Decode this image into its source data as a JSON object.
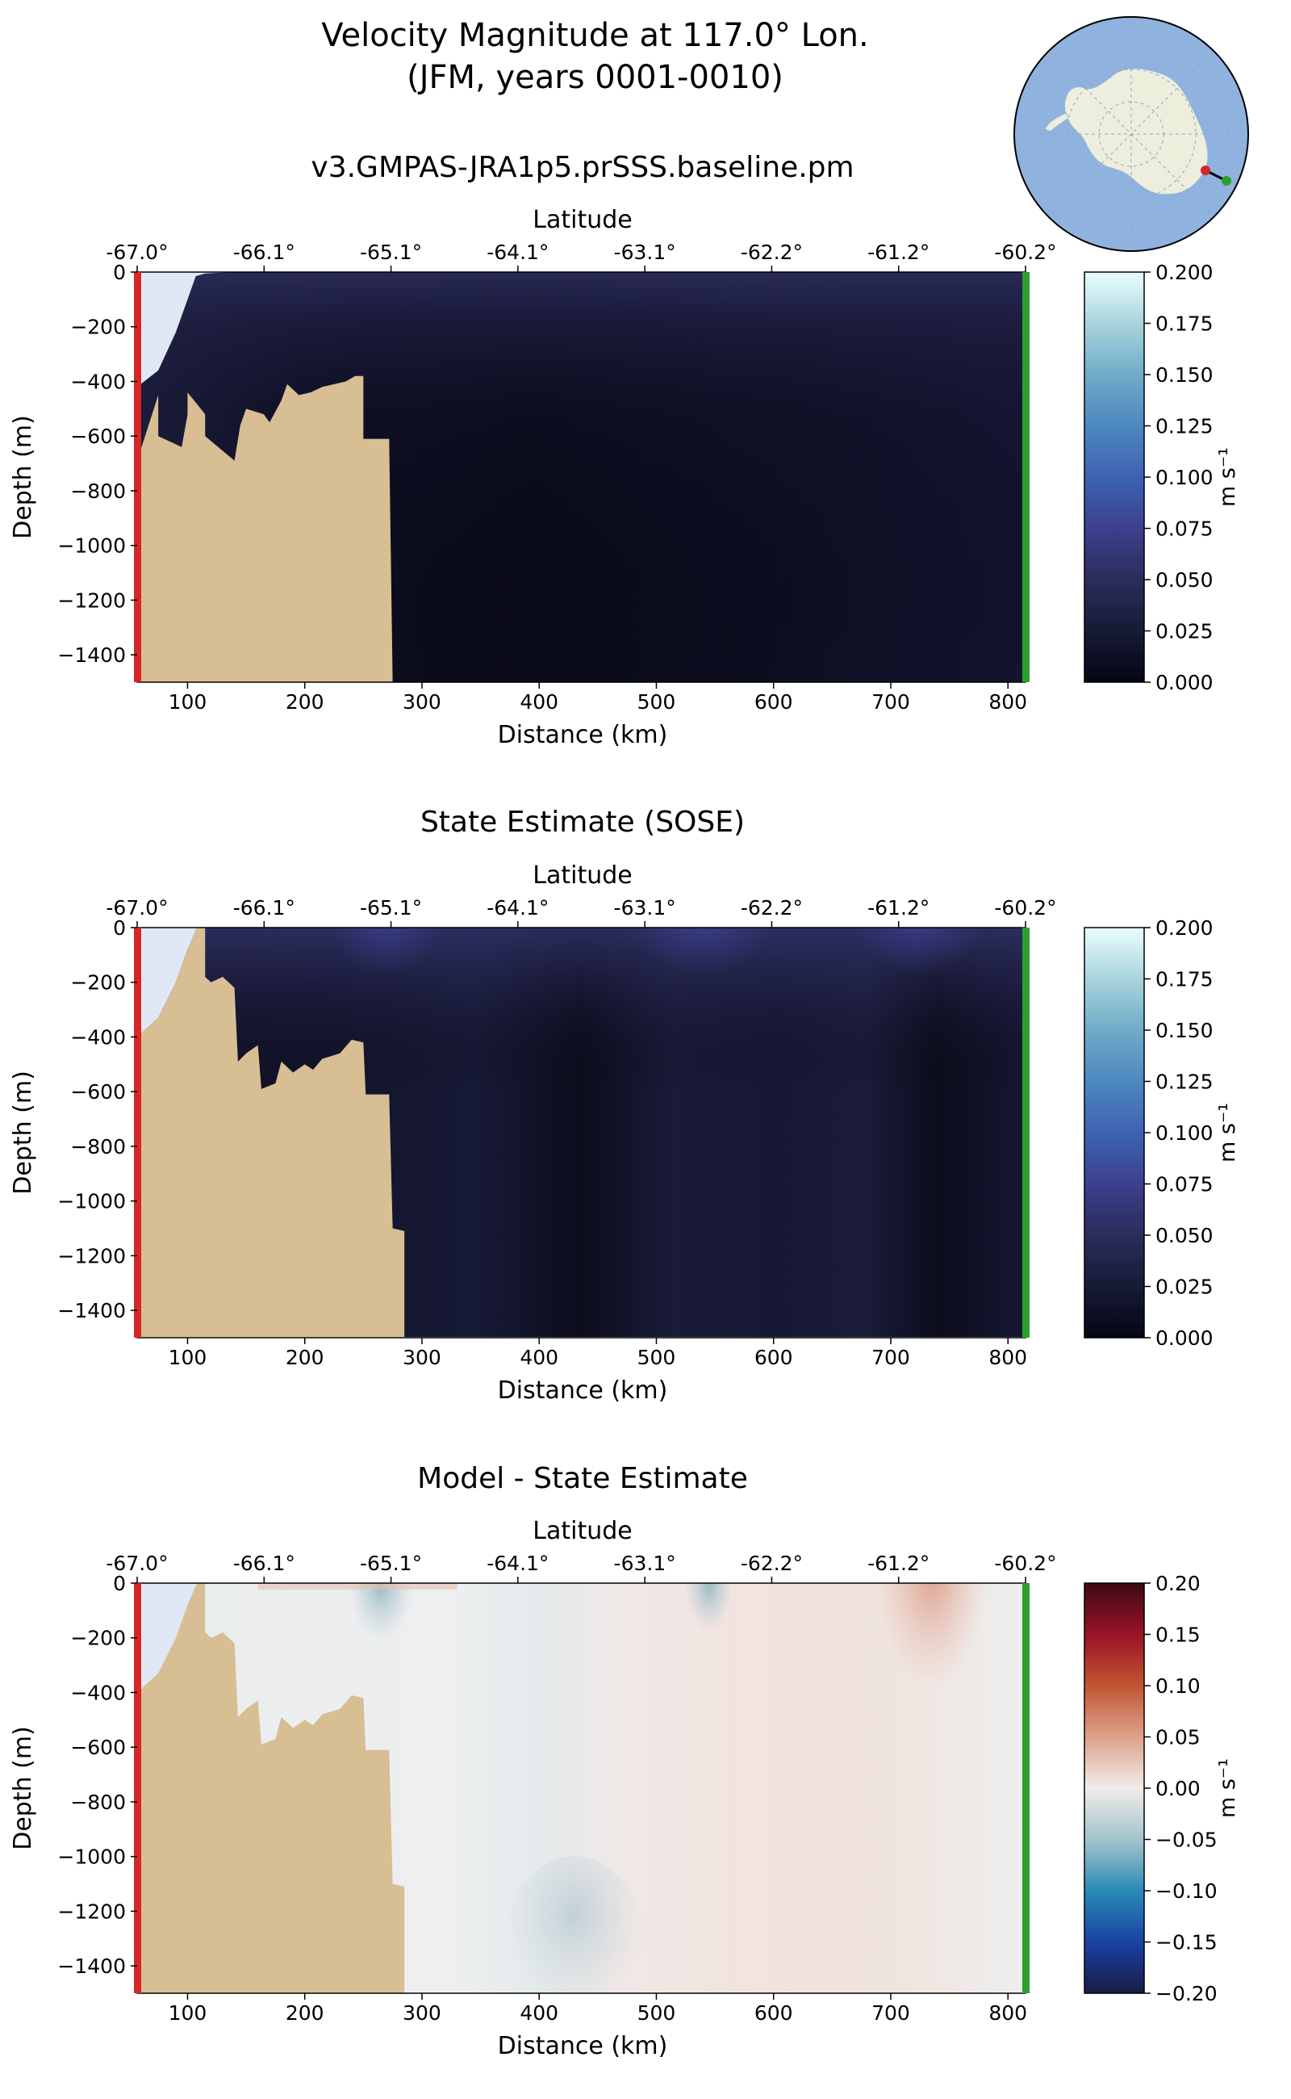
{
  "figure": {
    "title_line1": "Velocity Magnitude at 117.0° Lon.",
    "title_line2": "(JFM, years 0001-0010)"
  },
  "colors": {
    "land": "#d7be93",
    "shelf_ice": "#dfe8f4",
    "start_marker": "#d62728",
    "end_marker": "#2ca02c",
    "ocean_map": "#8fb3de",
    "continent_map": "#eeeedd"
  },
  "inset_map": {
    "name": "antarctic-locator-map",
    "transect_start": "red",
    "transect_end": "green"
  },
  "chart_data": [
    {
      "type": "heatmap",
      "title": "v3.GMPAS-JRA1p5.prSSS.baseline.pm",
      "xlabel": "Distance (km)",
      "ylabel": "Depth (m)",
      "top_axis_label": "Latitude",
      "xlim": [
        57,
        815
      ],
      "ylim": [
        -1500,
        0
      ],
      "x_ticks": [
        "100",
        "200",
        "300",
        "400",
        "500",
        "600",
        "700",
        "800"
      ],
      "y_ticks": [
        "0",
        "−200",
        "−400",
        "−600",
        "−800",
        "−1000",
        "−1200",
        "−1400"
      ],
      "lat_ticks": [
        "-67.0°",
        "-66.1°",
        "-65.1°",
        "-64.1°",
        "-63.1°",
        "-62.2°",
        "-61.2°",
        "-60.2°"
      ],
      "colorbar": {
        "label": "m s⁻¹",
        "ticks": [
          "0.200",
          "0.175",
          "0.150",
          "0.125",
          "0.100",
          "0.075",
          "0.050",
          "0.025",
          "0.000"
        ],
        "colormap": "ice"
      },
      "field_description": "mostly 0.00-0.03 m/s with slightly higher values near surface",
      "bathymetry": [
        [
          57,
          -650
        ],
        [
          60,
          -650
        ],
        [
          75,
          -450
        ],
        [
          75,
          -600
        ],
        [
          95,
          -640
        ],
        [
          100,
          -520
        ],
        [
          100,
          -440
        ],
        [
          115,
          -520
        ],
        [
          115,
          -600
        ],
        [
          140,
          -690
        ],
        [
          145,
          -560
        ],
        [
          150,
          -500
        ],
        [
          165,
          -520
        ],
        [
          170,
          -550
        ],
        [
          180,
          -470
        ],
        [
          185,
          -410
        ],
        [
          195,
          -450
        ],
        [
          205,
          -440
        ],
        [
          215,
          -420
        ],
        [
          235,
          -400
        ],
        [
          243,
          -380
        ],
        [
          250,
          -380
        ],
        [
          250,
          -610
        ],
        [
          272,
          -610
        ],
        [
          275,
          -1500
        ]
      ],
      "ice_edge": [
        [
          57,
          -420
        ],
        [
          75,
          -360
        ],
        [
          90,
          -220
        ],
        [
          100,
          -100
        ],
        [
          107,
          -15
        ],
        [
          115,
          -5
        ],
        [
          140,
          0
        ]
      ]
    },
    {
      "type": "heatmap",
      "title": "State Estimate (SOSE)",
      "xlabel": "Distance (km)",
      "ylabel": "Depth (m)",
      "top_axis_label": "Latitude",
      "xlim": [
        57,
        815
      ],
      "ylim": [
        -1500,
        0
      ],
      "x_ticks": [
        "100",
        "200",
        "300",
        "400",
        "500",
        "600",
        "700",
        "800"
      ],
      "y_ticks": [
        "0",
        "−200",
        "−400",
        "−600",
        "−800",
        "−1000",
        "−1200",
        "−1400"
      ],
      "lat_ticks": [
        "-67.0°",
        "-66.1°",
        "-65.1°",
        "-64.1°",
        "-63.1°",
        "-62.2°",
        "-61.2°",
        "-60.2°"
      ],
      "colorbar": {
        "label": "m s⁻¹",
        "ticks": [
          "0.200",
          "0.175",
          "0.150",
          "0.125",
          "0.100",
          "0.075",
          "0.050",
          "0.025",
          "0.000"
        ],
        "colormap": "ice"
      },
      "field_description": "mostly 0.01-0.04 m/s with surface maxima near 260 km, 540 km and 720 km",
      "bathymetry": [
        [
          57,
          -1500
        ],
        [
          57,
          -400
        ],
        [
          75,
          -330
        ],
        [
          90,
          -200
        ],
        [
          100,
          -80
        ],
        [
          108,
          0
        ],
        [
          115,
          0
        ],
        [
          115,
          -180
        ],
        [
          120,
          -200
        ],
        [
          130,
          -180
        ],
        [
          140,
          -220
        ],
        [
          143,
          -490
        ],
        [
          150,
          -460
        ],
        [
          160,
          -430
        ],
        [
          163,
          -590
        ],
        [
          175,
          -570
        ],
        [
          180,
          -490
        ],
        [
          190,
          -530
        ],
        [
          200,
          -500
        ],
        [
          207,
          -520
        ],
        [
          215,
          -480
        ],
        [
          230,
          -460
        ],
        [
          240,
          -410
        ],
        [
          250,
          -420
        ],
        [
          252,
          -610
        ],
        [
          272,
          -610
        ],
        [
          275,
          -1100
        ],
        [
          285,
          -1110
        ],
        [
          285,
          -1500
        ]
      ],
      "ice_edge": [
        [
          57,
          -400
        ],
        [
          75,
          -330
        ],
        [
          90,
          -200
        ],
        [
          100,
          -80
        ],
        [
          108,
          0
        ]
      ]
    },
    {
      "type": "heatmap",
      "title": "Model - State Estimate",
      "xlabel": "Distance (km)",
      "ylabel": "Depth (m)",
      "top_axis_label": "Latitude",
      "xlim": [
        57,
        815
      ],
      "ylim": [
        -1500,
        0
      ],
      "x_ticks": [
        "100",
        "200",
        "300",
        "400",
        "500",
        "600",
        "700",
        "800"
      ],
      "y_ticks": [
        "0",
        "−200",
        "−400",
        "−600",
        "−800",
        "−1000",
        "−1200",
        "−1400"
      ],
      "lat_ticks": [
        "-67.0°",
        "-66.1°",
        "-65.1°",
        "-64.1°",
        "-63.1°",
        "-62.2°",
        "-61.2°",
        "-60.2°"
      ],
      "colorbar": {
        "label": "m s⁻¹",
        "ticks": [
          "0.20",
          "0.15",
          "0.10",
          "0.05",
          "0.00",
          "−0.05",
          "−0.10",
          "−0.15",
          "−0.20"
        ],
        "colormap": "balance"
      },
      "field_description": "differences near 0; positive about 0.03 near surface at 700-760 km, negative about -0.02 near surface at 260 km",
      "bathymetry": [
        [
          57,
          -1500
        ],
        [
          57,
          -400
        ],
        [
          75,
          -330
        ],
        [
          90,
          -200
        ],
        [
          100,
          -80
        ],
        [
          108,
          0
        ],
        [
          115,
          0
        ],
        [
          115,
          -180
        ],
        [
          120,
          -200
        ],
        [
          130,
          -180
        ],
        [
          140,
          -220
        ],
        [
          143,
          -490
        ],
        [
          150,
          -460
        ],
        [
          160,
          -430
        ],
        [
          163,
          -590
        ],
        [
          175,
          -570
        ],
        [
          180,
          -490
        ],
        [
          190,
          -530
        ],
        [
          200,
          -500
        ],
        [
          207,
          -520
        ],
        [
          215,
          -480
        ],
        [
          230,
          -460
        ],
        [
          240,
          -410
        ],
        [
          250,
          -420
        ],
        [
          252,
          -610
        ],
        [
          272,
          -610
        ],
        [
          275,
          -1100
        ],
        [
          285,
          -1110
        ],
        [
          285,
          -1500
        ]
      ],
      "ice_edge": [
        [
          57,
          -400
        ],
        [
          75,
          -330
        ],
        [
          90,
          -200
        ],
        [
          100,
          -80
        ],
        [
          108,
          0
        ]
      ]
    }
  ]
}
